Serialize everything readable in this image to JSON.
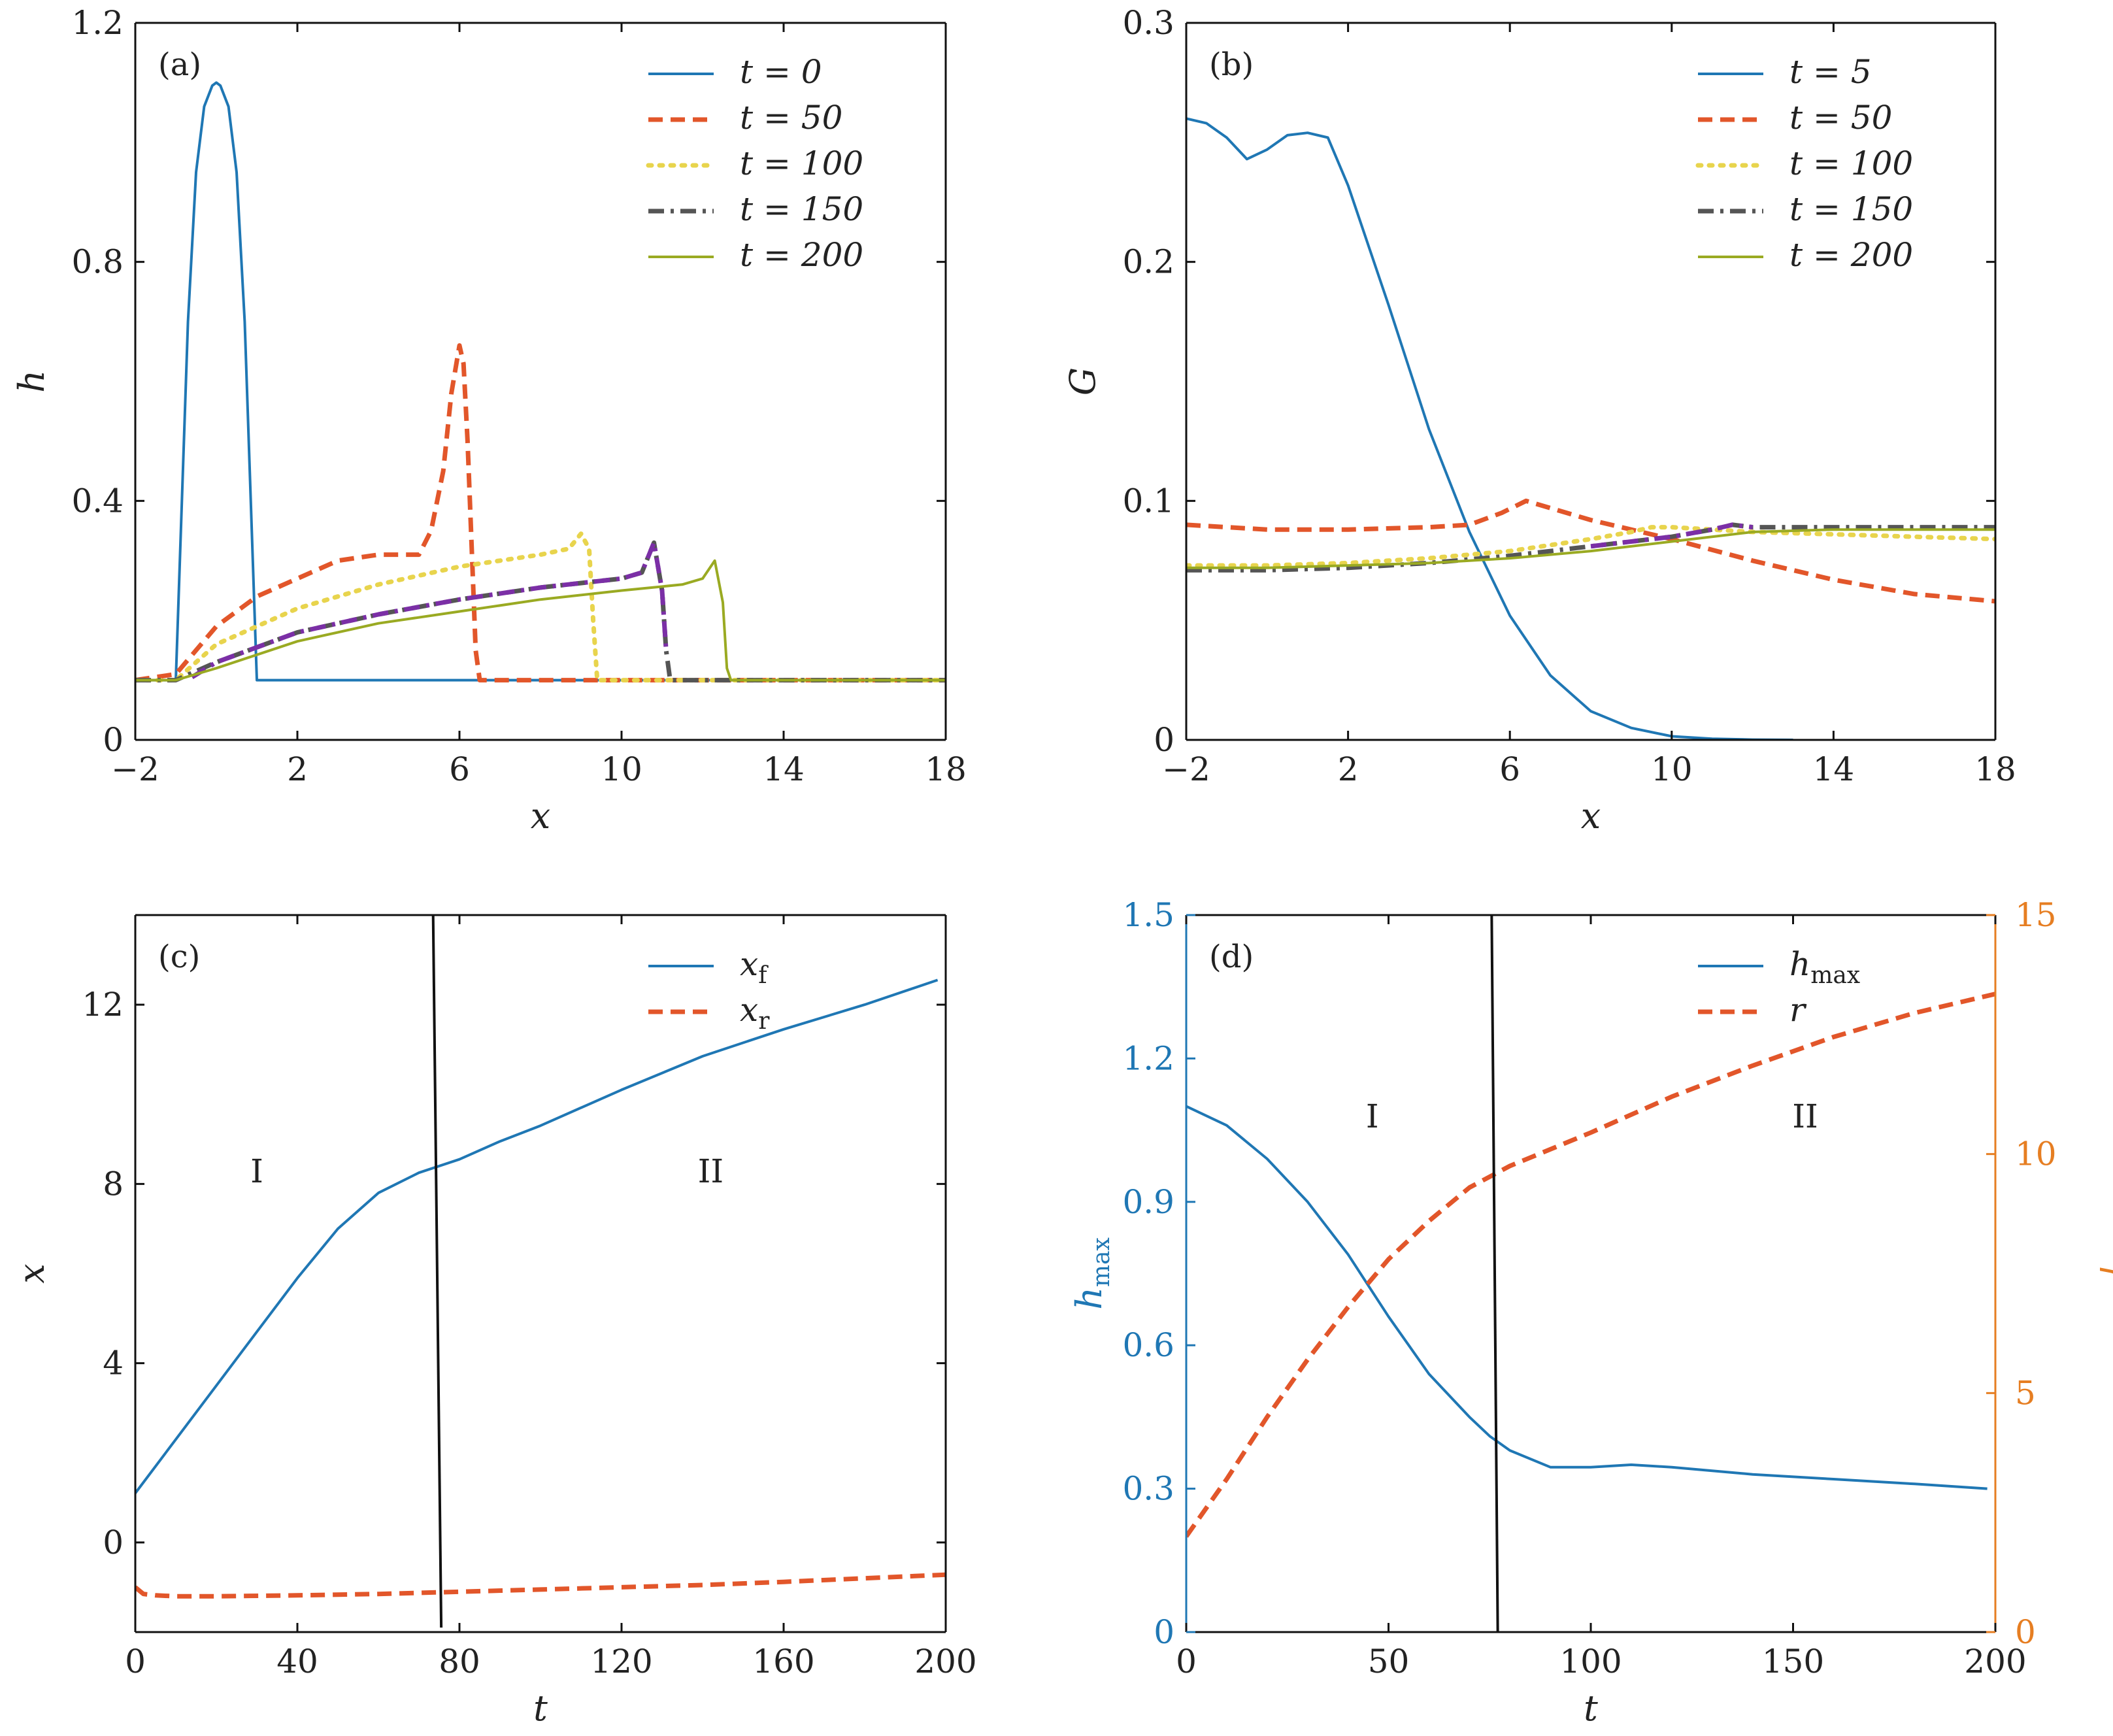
{
  "figure": {
    "colors": {
      "blue": "#1f77b4",
      "red_orange": "#e2562a",
      "yellow": "#e8d44d",
      "dark_gray": "#555555",
      "purple": "#7b2fa6",
      "olive": "#9aaa22",
      "orange_axis": "#e67e22",
      "black": "#111111"
    }
  },
  "chart_data": [
    {
      "id": "a",
      "type": "line",
      "panel_label": "(a)",
      "xlabel": "x",
      "ylabel": "h",
      "xlim": [
        -2,
        18
      ],
      "ylim": [
        0,
        1.2
      ],
      "xticks": [
        -2,
        2,
        6,
        10,
        14,
        18
      ],
      "xtick_labels": [
        "−2",
        "2",
        "6",
        "10",
        "14",
        "18"
      ],
      "yticks": [
        0,
        0.4,
        0.8,
        1.2
      ],
      "ytick_labels": [
        "0",
        "0.4",
        "0.8",
        "1.2"
      ],
      "legend_position": "top-right",
      "series": [
        {
          "name": "t = 0",
          "color": "#1f77b4",
          "dash": "solid",
          "x": [
            -2,
            -1,
            -0.9,
            -0.7,
            -0.5,
            -0.3,
            -0.1,
            0.0,
            0.1,
            0.3,
            0.5,
            0.7,
            0.9,
            1.0,
            1.01,
            4,
            8,
            12,
            18
          ],
          "y": [
            0.1,
            0.1,
            0.3,
            0.7,
            0.95,
            1.06,
            1.095,
            1.1,
            1.095,
            1.06,
            0.95,
            0.7,
            0.3,
            0.1,
            0.1,
            0.1,
            0.1,
            0.1,
            0.1
          ]
        },
        {
          "name": "t = 50",
          "color": "#e2562a",
          "dash": "dash",
          "x": [
            -2,
            -1,
            0,
            1,
            2,
            3,
            4,
            5,
            5.3,
            5.6,
            5.8,
            6.0,
            6.1,
            6.2,
            6.4,
            6.5,
            10,
            18
          ],
          "y": [
            0.1,
            0.11,
            0.19,
            0.24,
            0.27,
            0.3,
            0.31,
            0.31,
            0.35,
            0.45,
            0.58,
            0.66,
            0.63,
            0.5,
            0.15,
            0.1,
            0.1,
            0.1
          ]
        },
        {
          "name": "t = 100",
          "color": "#e8d44d",
          "dash": "dot",
          "x": [
            -2,
            -1,
            0,
            2,
            4,
            6,
            8,
            8.7,
            9.0,
            9.2,
            9.3,
            9.4,
            9.5,
            18
          ],
          "y": [
            0.1,
            0.1,
            0.16,
            0.22,
            0.26,
            0.29,
            0.31,
            0.32,
            0.345,
            0.32,
            0.2,
            0.1,
            0.1,
            0.1
          ]
        },
        {
          "name": "t = 150",
          "color": "#555555",
          "dash": "dashdot",
          "x": [
            -2,
            -1,
            0,
            2,
            4,
            6,
            8,
            10,
            10.5,
            10.8,
            11.0,
            11.1,
            11.2,
            11.4,
            18
          ],
          "y": [
            0.1,
            0.1,
            0.13,
            0.18,
            0.21,
            0.235,
            0.255,
            0.27,
            0.28,
            0.33,
            0.25,
            0.15,
            0.1,
            0.1,
            0.1
          ]
        },
        {
          "name": "",
          "color": "#7b2fa6",
          "dash": "dashdot",
          "x": [
            -0.6,
            0,
            2,
            4,
            6,
            8,
            10,
            10.5,
            10.8,
            11.0,
            11.1
          ],
          "y": [
            0.105,
            0.13,
            0.18,
            0.21,
            0.235,
            0.255,
            0.27,
            0.28,
            0.33,
            0.25,
            0.15
          ]
        },
        {
          "name": "t = 200",
          "color": "#9aaa22",
          "dash": "solid",
          "x": [
            -2,
            -1,
            0,
            2,
            4,
            6,
            8,
            10,
            11.5,
            12.0,
            12.3,
            12.5,
            12.6,
            12.7,
            18
          ],
          "y": [
            0.1,
            0.1,
            0.12,
            0.165,
            0.195,
            0.215,
            0.235,
            0.25,
            0.26,
            0.27,
            0.3,
            0.23,
            0.12,
            0.1,
            0.1
          ]
        }
      ]
    },
    {
      "id": "b",
      "type": "line",
      "panel_label": "(b)",
      "xlabel": "x",
      "ylabel": "G",
      "xlim": [
        -2,
        18
      ],
      "ylim": [
        0,
        0.3
      ],
      "xticks": [
        -2,
        2,
        6,
        10,
        14,
        18
      ],
      "xtick_labels": [
        "−2",
        "2",
        "6",
        "10",
        "14",
        "18"
      ],
      "yticks": [
        0,
        0.1,
        0.2,
        0.3
      ],
      "ytick_labels": [
        "0",
        "0.1",
        "0.2",
        "0.3"
      ],
      "legend_position": "top-right",
      "series": [
        {
          "name": "t = 5",
          "color": "#1f77b4",
          "dash": "solid",
          "x": [
            -2,
            -1.5,
            -1,
            -0.5,
            0,
            0.5,
            1,
            1.5,
            2,
            3,
            4,
            5,
            6,
            7,
            8,
            9,
            10,
            11,
            12,
            13
          ],
          "y": [
            0.26,
            0.258,
            0.252,
            0.243,
            0.247,
            0.253,
            0.254,
            0.252,
            0.232,
            0.182,
            0.13,
            0.087,
            0.052,
            0.027,
            0.012,
            0.005,
            0.0015,
            0.0005,
            0.0001,
            0
          ]
        },
        {
          "name": "t = 50",
          "color": "#e2562a",
          "dash": "dash",
          "x": [
            -2,
            0,
            2,
            4,
            5,
            5.8,
            6.4,
            7,
            8,
            10,
            12,
            14,
            16,
            18
          ],
          "y": [
            0.09,
            0.088,
            0.088,
            0.089,
            0.09,
            0.095,
            0.1,
            0.097,
            0.092,
            0.084,
            0.075,
            0.067,
            0.061,
            0.058
          ]
        },
        {
          "name": "t = 100",
          "color": "#e8d44d",
          "dash": "dot",
          "x": [
            -2,
            0,
            2,
            4,
            6,
            8,
            9,
            9.5,
            10,
            12,
            14,
            16,
            18
          ],
          "y": [
            0.073,
            0.073,
            0.074,
            0.076,
            0.079,
            0.084,
            0.087,
            0.089,
            0.089,
            0.087,
            0.086,
            0.085,
            0.084
          ]
        },
        {
          "name": "t = 150",
          "color": "#555555",
          "dash": "dashdot",
          "x": [
            -2,
            0,
            2,
            4,
            6,
            8,
            10,
            11,
            11.5,
            12,
            14,
            16,
            18
          ],
          "y": [
            0.071,
            0.071,
            0.072,
            0.074,
            0.077,
            0.081,
            0.085,
            0.088,
            0.09,
            0.089,
            0.089,
            0.089,
            0.089
          ]
        },
        {
          "name": "",
          "color": "#7b2fa6",
          "dash": "dashdot",
          "x": [
            8,
            10,
            11,
            11.5,
            12
          ],
          "y": [
            0.081,
            0.085,
            0.088,
            0.09,
            0.089
          ]
        },
        {
          "name": "t = 200",
          "color": "#9aaa22",
          "dash": "solid",
          "x": [
            -2,
            0,
            2,
            4,
            6,
            8,
            10,
            12,
            14,
            16,
            18
          ],
          "y": [
            0.072,
            0.072,
            0.073,
            0.074,
            0.076,
            0.079,
            0.083,
            0.087,
            0.088,
            0.088,
            0.088
          ]
        }
      ]
    },
    {
      "id": "c",
      "type": "line",
      "panel_label": "(c)",
      "xlabel": "t",
      "ylabel": "x",
      "xlim": [
        0,
        200
      ],
      "ylim": [
        -2,
        14
      ],
      "xticks": [
        0,
        40,
        80,
        120,
        160,
        200
      ],
      "xtick_labels": [
        "0",
        "40",
        "80",
        "120",
        "160",
        "200"
      ],
      "yticks": [
        0,
        4,
        8,
        12
      ],
      "ytick_labels": [
        "0",
        "4",
        "8",
        "12"
      ],
      "legend_position": "top-right",
      "region_labels": [
        {
          "text": "I",
          "x": 30,
          "y": 8.3
        },
        {
          "text": "II",
          "x": 142,
          "y": 8.3
        }
      ],
      "divider": {
        "x1": 73.5,
        "y1": 14,
        "x2": 75.5,
        "y2": -1.9
      },
      "series": [
        {
          "name": "xf",
          "label_base": "x",
          "label_sub": "f",
          "color": "#1f77b4",
          "dash": "solid",
          "x": [
            0,
            10,
            20,
            30,
            40,
            50,
            60,
            70,
            80,
            90,
            100,
            120,
            140,
            160,
            180,
            198
          ],
          "y": [
            1.1,
            2.3,
            3.5,
            4.7,
            5.9,
            7.0,
            7.8,
            8.25,
            8.55,
            8.95,
            9.3,
            10.1,
            10.85,
            11.45,
            12.0,
            12.55
          ]
        },
        {
          "name": "xr",
          "label_base": "x",
          "label_sub": "r",
          "color": "#e2562a",
          "dash": "dash",
          "x": [
            0,
            2,
            5,
            10,
            20,
            40,
            60,
            80,
            100,
            120,
            140,
            160,
            180,
            200
          ],
          "y": [
            -1.0,
            -1.15,
            -1.18,
            -1.2,
            -1.2,
            -1.18,
            -1.15,
            -1.1,
            -1.05,
            -1.0,
            -0.95,
            -0.88,
            -0.8,
            -0.72
          ]
        }
      ]
    },
    {
      "id": "d",
      "type": "line",
      "panel_label": "(d)",
      "xlabel": "t",
      "ylabel": "hmax",
      "ylabel_base": "h",
      "ylabel_sub": "max",
      "ylabel_right": "r",
      "xlim": [
        0,
        200
      ],
      "ylim": [
        0,
        1.5
      ],
      "ylim_right": [
        0,
        15
      ],
      "xticks": [
        0,
        50,
        100,
        150,
        200
      ],
      "xtick_labels": [
        "0",
        "50",
        "100",
        "150",
        "200"
      ],
      "yticks": [
        0,
        0.3,
        0.6,
        0.9,
        1.2,
        1.5
      ],
      "ytick_labels": [
        "0",
        "0.3",
        "0.6",
        "0.9",
        "1.2",
        "1.5"
      ],
      "yticks_right": [
        0,
        5,
        10,
        15
      ],
      "ytick_labels_right": [
        "0",
        "5",
        "10",
        "15"
      ],
      "left_axis_color": "#1f77b4",
      "right_axis_color": "#e67e22",
      "legend_position": "top-right",
      "region_labels": [
        {
          "text": "I",
          "x": 46,
          "y": 1.08
        },
        {
          "text": "II",
          "x": 153,
          "y": 1.08
        }
      ],
      "divider": {
        "x1": 75.5,
        "y1": 1.5,
        "x2": 77.0,
        "y2": 0
      },
      "series": [
        {
          "name": "hmax",
          "label_base": "h",
          "label_sub": "max",
          "axis": "left",
          "color": "#1f77b4",
          "dash": "solid",
          "x": [
            0,
            10,
            20,
            30,
            40,
            50,
            60,
            70,
            75,
            80,
            90,
            100,
            110,
            120,
            140,
            160,
            180,
            198
          ],
          "y": [
            1.1,
            1.06,
            0.99,
            0.9,
            0.79,
            0.66,
            0.54,
            0.45,
            0.41,
            0.38,
            0.345,
            0.345,
            0.35,
            0.345,
            0.33,
            0.32,
            0.31,
            0.3
          ]
        },
        {
          "name": "r",
          "label_base": "r",
          "label_sub": "",
          "axis": "right",
          "color": "#e2562a",
          "dash": "dash",
          "x": [
            0,
            10,
            20,
            30,
            40,
            50,
            60,
            70,
            80,
            90,
            100,
            120,
            140,
            160,
            180,
            200
          ],
          "y": [
            2.0,
            3.2,
            4.5,
            5.7,
            6.8,
            7.8,
            8.6,
            9.3,
            9.75,
            10.1,
            10.45,
            11.2,
            11.85,
            12.45,
            12.95,
            13.35
          ]
        }
      ]
    }
  ]
}
